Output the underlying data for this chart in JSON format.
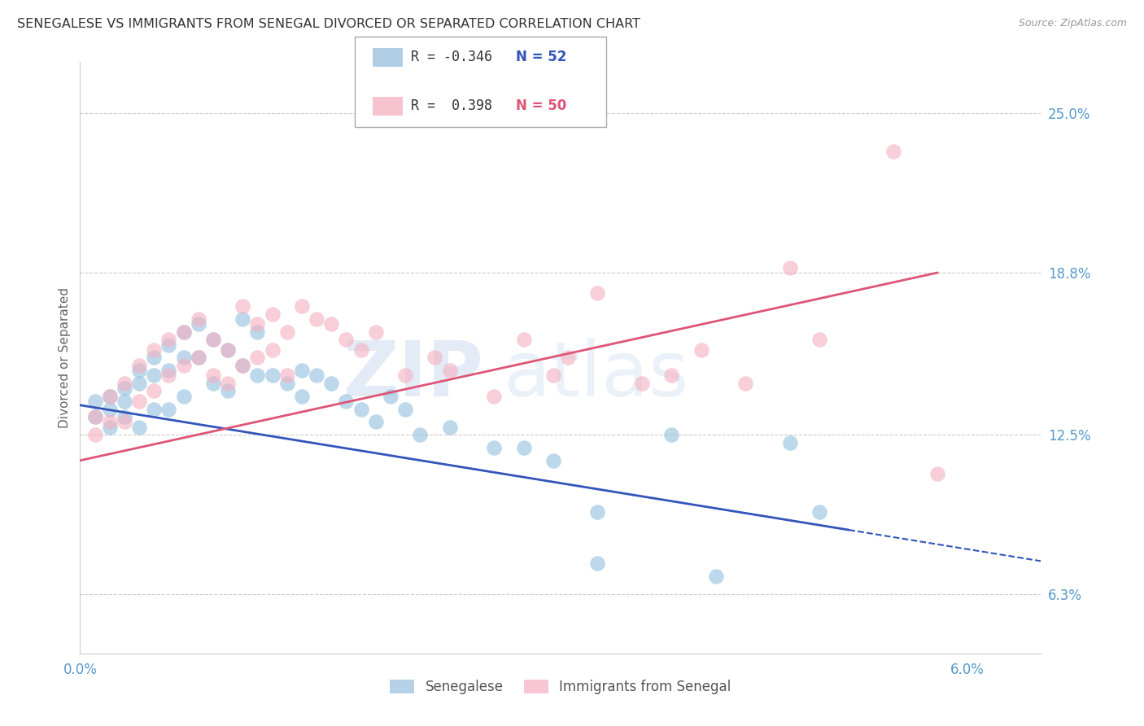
{
  "title": "SENEGALESE VS IMMIGRANTS FROM SENEGAL DIVORCED OR SEPARATED CORRELATION CHART",
  "source": "Source: ZipAtlas.com",
  "ylabel": "Divorced or Separated",
  "right_yticks": [
    "25.0%",
    "18.8%",
    "12.5%",
    "6.3%"
  ],
  "right_ytick_vals": [
    0.25,
    0.188,
    0.125,
    0.063
  ],
  "legend_blue_r": "-0.346",
  "legend_blue_n": "52",
  "legend_pink_r": "0.398",
  "legend_pink_n": "50",
  "blue_color": "#94bede",
  "pink_color": "#f4afc0",
  "line_blue": "#3355bb",
  "line_pink": "#dd5577",
  "label_color": "#5599cc",
  "watermark_zip": "ZIP",
  "watermark_atlas": "atlas",
  "blue_scatter_x": [
    0.001,
    0.001,
    0.002,
    0.002,
    0.002,
    0.003,
    0.003,
    0.003,
    0.004,
    0.004,
    0.004,
    0.005,
    0.005,
    0.005,
    0.006,
    0.006,
    0.006,
    0.007,
    0.007,
    0.007,
    0.008,
    0.008,
    0.009,
    0.009,
    0.01,
    0.01,
    0.011,
    0.011,
    0.012,
    0.012,
    0.013,
    0.014,
    0.015,
    0.015,
    0.016,
    0.017,
    0.018,
    0.019,
    0.02,
    0.021,
    0.022,
    0.023,
    0.025,
    0.028,
    0.03,
    0.032,
    0.035,
    0.04,
    0.048,
    0.05,
    0.035,
    0.043
  ],
  "blue_scatter_y": [
    0.138,
    0.132,
    0.14,
    0.135,
    0.128,
    0.143,
    0.138,
    0.132,
    0.15,
    0.145,
    0.128,
    0.155,
    0.148,
    0.135,
    0.16,
    0.15,
    0.135,
    0.165,
    0.155,
    0.14,
    0.168,
    0.155,
    0.162,
    0.145,
    0.158,
    0.142,
    0.17,
    0.152,
    0.165,
    0.148,
    0.148,
    0.145,
    0.15,
    0.14,
    0.148,
    0.145,
    0.138,
    0.135,
    0.13,
    0.14,
    0.135,
    0.125,
    0.128,
    0.12,
    0.12,
    0.115,
    0.095,
    0.125,
    0.122,
    0.095,
    0.075,
    0.07
  ],
  "pink_scatter_x": [
    0.001,
    0.001,
    0.002,
    0.002,
    0.003,
    0.003,
    0.004,
    0.004,
    0.005,
    0.005,
    0.006,
    0.006,
    0.007,
    0.007,
    0.008,
    0.008,
    0.009,
    0.009,
    0.01,
    0.01,
    0.011,
    0.011,
    0.012,
    0.012,
    0.013,
    0.013,
    0.014,
    0.014,
    0.015,
    0.016,
    0.017,
    0.018,
    0.019,
    0.02,
    0.022,
    0.024,
    0.025,
    0.028,
    0.03,
    0.032,
    0.033,
    0.035,
    0.038,
    0.04,
    0.042,
    0.045,
    0.048,
    0.05,
    0.055,
    0.058
  ],
  "pink_scatter_y": [
    0.132,
    0.125,
    0.14,
    0.13,
    0.145,
    0.13,
    0.152,
    0.138,
    0.158,
    0.142,
    0.162,
    0.148,
    0.165,
    0.152,
    0.17,
    0.155,
    0.162,
    0.148,
    0.158,
    0.145,
    0.175,
    0.152,
    0.168,
    0.155,
    0.172,
    0.158,
    0.165,
    0.148,
    0.175,
    0.17,
    0.168,
    0.162,
    0.158,
    0.165,
    0.148,
    0.155,
    0.15,
    0.14,
    0.162,
    0.148,
    0.155,
    0.18,
    0.145,
    0.148,
    0.158,
    0.145,
    0.19,
    0.162,
    0.235,
    0.11
  ],
  "blue_line_x0": 0.0,
  "blue_line_y0": 0.1365,
  "blue_line_x1": 0.052,
  "blue_line_y1": 0.088,
  "pink_line_x0": 0.0,
  "pink_line_y0": 0.115,
  "pink_line_x1": 0.058,
  "pink_line_y1": 0.188,
  "xlim": [
    0.0,
    0.065
  ],
  "ylim": [
    0.04,
    0.27
  ]
}
